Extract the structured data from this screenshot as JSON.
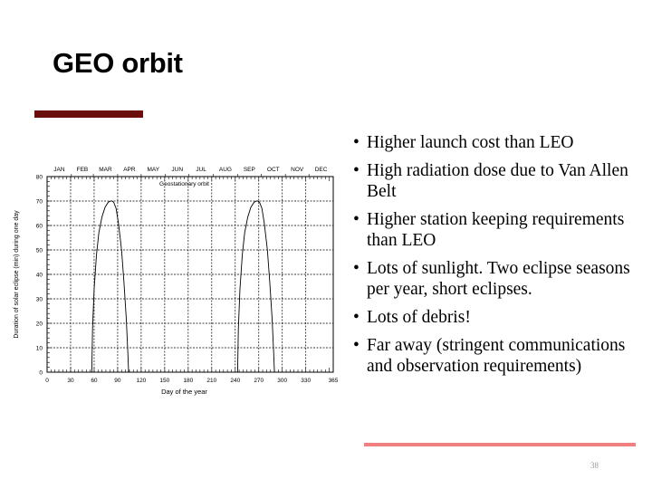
{
  "slide": {
    "title": "GEO orbit",
    "page_number": "38",
    "bullets": [
      "Higher launch cost than LEO",
      "High radiation dose due to Van Allen Belt",
      "Higher station keeping requirements than LEO",
      "Lots of sunlight. Two eclipse seasons per year, short eclipses.",
      "Lots of debris!",
      "Far away (stringent communications and observation requirements)"
    ],
    "colors": {
      "title_bar": "#6b0d0d",
      "footer_line": "#f08080"
    }
  },
  "chart_data": {
    "type": "line",
    "title": "Geostationary orbit",
    "xlabel": "Day of the year",
    "ylabel": "Duration of solar eclipse (min) during one day",
    "xlim": [
      0,
      365
    ],
    "ylim": [
      0,
      80
    ],
    "grid": true,
    "x_ticks": [
      0,
      30,
      60,
      90,
      120,
      150,
      180,
      210,
      240,
      270,
      300,
      330,
      365
    ],
    "y_ticks": [
      0,
      10,
      20,
      30,
      40,
      50,
      60,
      70,
      80
    ],
    "months": [
      "JAN",
      "FEB",
      "MAR",
      "APR",
      "MAY",
      "JUN",
      "JUL",
      "AUG",
      "SEP",
      "OCT",
      "NOV",
      "DEC"
    ],
    "series": [
      {
        "x": [
          57,
          58,
          60,
          63,
          66,
          70,
          74,
          78,
          81,
          83,
          85,
          88,
          91,
          95,
          98,
          101,
          103,
          104
        ],
        "y": [
          0,
          18,
          34,
          48,
          57,
          63.5,
          67.5,
          69.5,
          70,
          70,
          69.5,
          67,
          61,
          50,
          37,
          22,
          8,
          0
        ]
      },
      {
        "x": [
          243,
          244,
          246,
          249,
          252,
          256,
          260,
          264,
          267,
          269,
          271,
          274,
          277,
          281,
          284,
          287,
          289,
          290
        ],
        "y": [
          0,
          18,
          34,
          48,
          57,
          63.5,
          67.5,
          69.5,
          70,
          70,
          69.5,
          67,
          61,
          50,
          37,
          22,
          8,
          0
        ]
      }
    ]
  }
}
